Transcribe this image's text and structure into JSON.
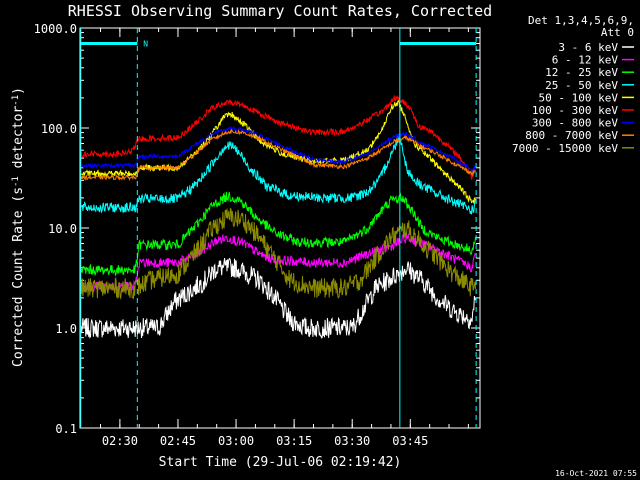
{
  "chart_data": {
    "type": "line",
    "title": "RHESSI Observing Summary Count Rates, Corrected",
    "xlabel": "Start Time (29-Jul-06 02:19:42)",
    "ylabel_main": "Corrected Count Rate (s",
    "ylabel_sup1": "-1",
    "ylabel_mid": " detector",
    "ylabel_sup2": "-1",
    "ylabel_end": ")",
    "timestamp": "16-Oct-2021 07:55",
    "legend_header": [
      "Det 1,3,4,5,6,9,",
      "Att 0"
    ],
    "x_range_min": [
      19.7,
      123
    ],
    "y_range": [
      0.1,
      1000
    ],
    "y_scale": "log",
    "x_ticks": [
      {
        "t": 30,
        "label": "02:30"
      },
      {
        "t": 45,
        "label": "02:45"
      },
      {
        "t": 60,
        "label": "03:00"
      },
      {
        "t": 75,
        "label": "03:15"
      },
      {
        "t": 90,
        "label": "03:30"
      },
      {
        "t": 105,
        "label": "03:45"
      }
    ],
    "y_ticks": [
      {
        "v": 1000,
        "label": "1000.0"
      },
      {
        "v": 100,
        "label": "100.0"
      },
      {
        "v": 10,
        "label": "10.0"
      },
      {
        "v": 1,
        "label": "1.0"
      },
      {
        "v": 0.1,
        "label": "0.1"
      }
    ],
    "series": [
      {
        "name": "3 - 6 keV",
        "color": "#ffffff",
        "noise": 0.1,
        "points": [
          [
            20,
            1
          ],
          [
            40,
            1
          ],
          [
            44,
            1.8
          ],
          [
            52,
            3
          ],
          [
            55,
            4
          ],
          [
            60,
            4
          ],
          [
            66,
            3
          ],
          [
            70,
            2
          ],
          [
            74,
            1.2
          ],
          [
            78,
            1
          ],
          [
            86,
            1
          ],
          [
            90,
            1
          ],
          [
            96,
            2.5
          ],
          [
            104,
            4
          ],
          [
            108,
            3
          ],
          [
            112,
            2
          ],
          [
            116,
            1.5
          ],
          [
            121,
            1.2
          ],
          [
            122,
            2.5
          ]
        ]
      },
      {
        "name": "6 - 12 keV",
        "color": "#ff00ff",
        "noise": 0.05,
        "points": [
          [
            20,
            2.6
          ],
          [
            34,
            2.6
          ],
          [
            35,
            4.5
          ],
          [
            45,
            4.5
          ],
          [
            50,
            5.5
          ],
          [
            55,
            7.5
          ],
          [
            58,
            8
          ],
          [
            62,
            7
          ],
          [
            66,
            5.5
          ],
          [
            70,
            4.8
          ],
          [
            80,
            4.5
          ],
          [
            88,
            4.5
          ],
          [
            94,
            5.5
          ],
          [
            100,
            6.5
          ],
          [
            104,
            8
          ],
          [
            108,
            7
          ],
          [
            112,
            6
          ],
          [
            116,
            5
          ],
          [
            121,
            4
          ],
          [
            122,
            6
          ]
        ]
      },
      {
        "name": "12 - 25 keV",
        "color": "#00ff00",
        "noise": 0.05,
        "points": [
          [
            20,
            3.8
          ],
          [
            34,
            3.8
          ],
          [
            35,
            6.8
          ],
          [
            45,
            6.8
          ],
          [
            50,
            11
          ],
          [
            54,
            17
          ],
          [
            58,
            21
          ],
          [
            61,
            19
          ],
          [
            65,
            13
          ],
          [
            70,
            9
          ],
          [
            76,
            7.2
          ],
          [
            88,
            7.2
          ],
          [
            90,
            8
          ],
          [
            94,
            10
          ],
          [
            97,
            14
          ],
          [
            100,
            19
          ],
          [
            103,
            20
          ],
          [
            106,
            14
          ],
          [
            108,
            10
          ],
          [
            112,
            8
          ],
          [
            116,
            7
          ],
          [
            121,
            6
          ],
          [
            122,
            8
          ]
        ]
      },
      {
        "name": "25 - 50 keV",
        "color": "#00ffff",
        "noise": 0.05,
        "points": [
          [
            20,
            16
          ],
          [
            34,
            16
          ],
          [
            35,
            19.5
          ],
          [
            45,
            19.5
          ],
          [
            50,
            28
          ],
          [
            54,
            45
          ],
          [
            57,
            65
          ],
          [
            59,
            67
          ],
          [
            61,
            55
          ],
          [
            64,
            38
          ],
          [
            68,
            26
          ],
          [
            74,
            21
          ],
          [
            82,
            20
          ],
          [
            90,
            20
          ],
          [
            94,
            23
          ],
          [
            97,
            30
          ],
          [
            99,
            45
          ],
          [
            101,
            65
          ],
          [
            102,
            83
          ],
          [
            103,
            65
          ],
          [
            104,
            40
          ],
          [
            106,
            30
          ],
          [
            110,
            24
          ],
          [
            114,
            20
          ],
          [
            118,
            17
          ],
          [
            121,
            15
          ],
          [
            122,
            18
          ]
        ]
      },
      {
        "name": "50 - 100 keV",
        "color": "#ffff00",
        "noise": 0.03,
        "points": [
          [
            20,
            35
          ],
          [
            34,
            35
          ],
          [
            35,
            40
          ],
          [
            45,
            40
          ],
          [
            50,
            58
          ],
          [
            54,
            90
          ],
          [
            57,
            130
          ],
          [
            59,
            135
          ],
          [
            62,
            110
          ],
          [
            66,
            75
          ],
          [
            72,
            55
          ],
          [
            80,
            46
          ],
          [
            88,
            48
          ],
          [
            94,
            60
          ],
          [
            98,
            100
          ],
          [
            100,
            160
          ],
          [
            102,
            180
          ],
          [
            104,
            120
          ],
          [
            106,
            70
          ],
          [
            110,
            50
          ],
          [
            114,
            35
          ],
          [
            118,
            25
          ],
          [
            121,
            18
          ],
          [
            122,
            20
          ]
        ]
      },
      {
        "name": "100 - 300 keV",
        "color": "#ff0000",
        "noise": 0.03,
        "points": [
          [
            20,
            55
          ],
          [
            30,
            55
          ],
          [
            33,
            58
          ],
          [
            35,
            78
          ],
          [
            45,
            80
          ],
          [
            50,
            115
          ],
          [
            54,
            160
          ],
          [
            58,
            180
          ],
          [
            61,
            175
          ],
          [
            66,
            140
          ],
          [
            72,
            110
          ],
          [
            80,
            90
          ],
          [
            88,
            92
          ],
          [
            94,
            120
          ],
          [
            98,
            150
          ],
          [
            101,
            200
          ],
          [
            103,
            185
          ],
          [
            105,
            160
          ],
          [
            107,
            105
          ],
          [
            110,
            95
          ],
          [
            114,
            70
          ],
          [
            118,
            50
          ],
          [
            121,
            32
          ],
          [
            122,
            45
          ]
        ]
      },
      {
        "name": "300 - 800 keV",
        "color": "#0000ff",
        "noise": 0.02,
        "points": [
          [
            20,
            42
          ],
          [
            34,
            42
          ],
          [
            35,
            52
          ],
          [
            45,
            52
          ],
          [
            50,
            70
          ],
          [
            54,
            88
          ],
          [
            58,
            98
          ],
          [
            62,
            96
          ],
          [
            66,
            84
          ],
          [
            72,
            66
          ],
          [
            80,
            48
          ],
          [
            88,
            46
          ],
          [
            94,
            55
          ],
          [
            98,
            70
          ],
          [
            101,
            82
          ],
          [
            104,
            88
          ],
          [
            108,
            70
          ],
          [
            112,
            60
          ],
          [
            116,
            50
          ],
          [
            121,
            38
          ],
          [
            122,
            42
          ]
        ]
      },
      {
        "name": "800 - 7000 keV",
        "color": "#ff8000",
        "noise": 0.02,
        "points": [
          [
            20,
            32
          ],
          [
            34,
            32
          ],
          [
            35,
            40
          ],
          [
            45,
            40
          ],
          [
            50,
            58
          ],
          [
            54,
            78
          ],
          [
            58,
            92
          ],
          [
            62,
            90
          ],
          [
            66,
            78
          ],
          [
            72,
            60
          ],
          [
            80,
            43
          ],
          [
            88,
            41
          ],
          [
            94,
            50
          ],
          [
            98,
            62
          ],
          [
            101,
            74
          ],
          [
            104,
            80
          ],
          [
            108,
            65
          ],
          [
            112,
            55
          ],
          [
            116,
            45
          ],
          [
            121,
            35
          ],
          [
            122,
            38
          ]
        ]
      },
      {
        "name": "7000 - 15000 keV",
        "color": "#8b8b00",
        "noise": 0.1,
        "points": [
          [
            20,
            2.5
          ],
          [
            34,
            2.5
          ],
          [
            38,
            3
          ],
          [
            45,
            3.5
          ],
          [
            50,
            6
          ],
          [
            54,
            10
          ],
          [
            58,
            13
          ],
          [
            62,
            12
          ],
          [
            66,
            8
          ],
          [
            70,
            5
          ],
          [
            74,
            3
          ],
          [
            80,
            2.5
          ],
          [
            88,
            2.5
          ],
          [
            92,
            3
          ],
          [
            96,
            5
          ],
          [
            100,
            8
          ],
          [
            104,
            10
          ],
          [
            108,
            7
          ],
          [
            112,
            5
          ],
          [
            116,
            3.5
          ],
          [
            121,
            2.5
          ],
          [
            122,
            3
          ]
        ]
      }
    ],
    "vertical_markers": [
      {
        "t": 19.9,
        "style": "solid"
      },
      {
        "t": 34.5,
        "style": "dashed"
      },
      {
        "t": 102.3,
        "style": "solid"
      },
      {
        "t": 122,
        "style": "dashed"
      }
    ],
    "flags": [
      {
        "from": 19.9,
        "to": 34.5,
        "value": 700,
        "label": "N"
      },
      {
        "from": 102.3,
        "to": 122,
        "value": 700,
        "label": ""
      }
    ]
  }
}
